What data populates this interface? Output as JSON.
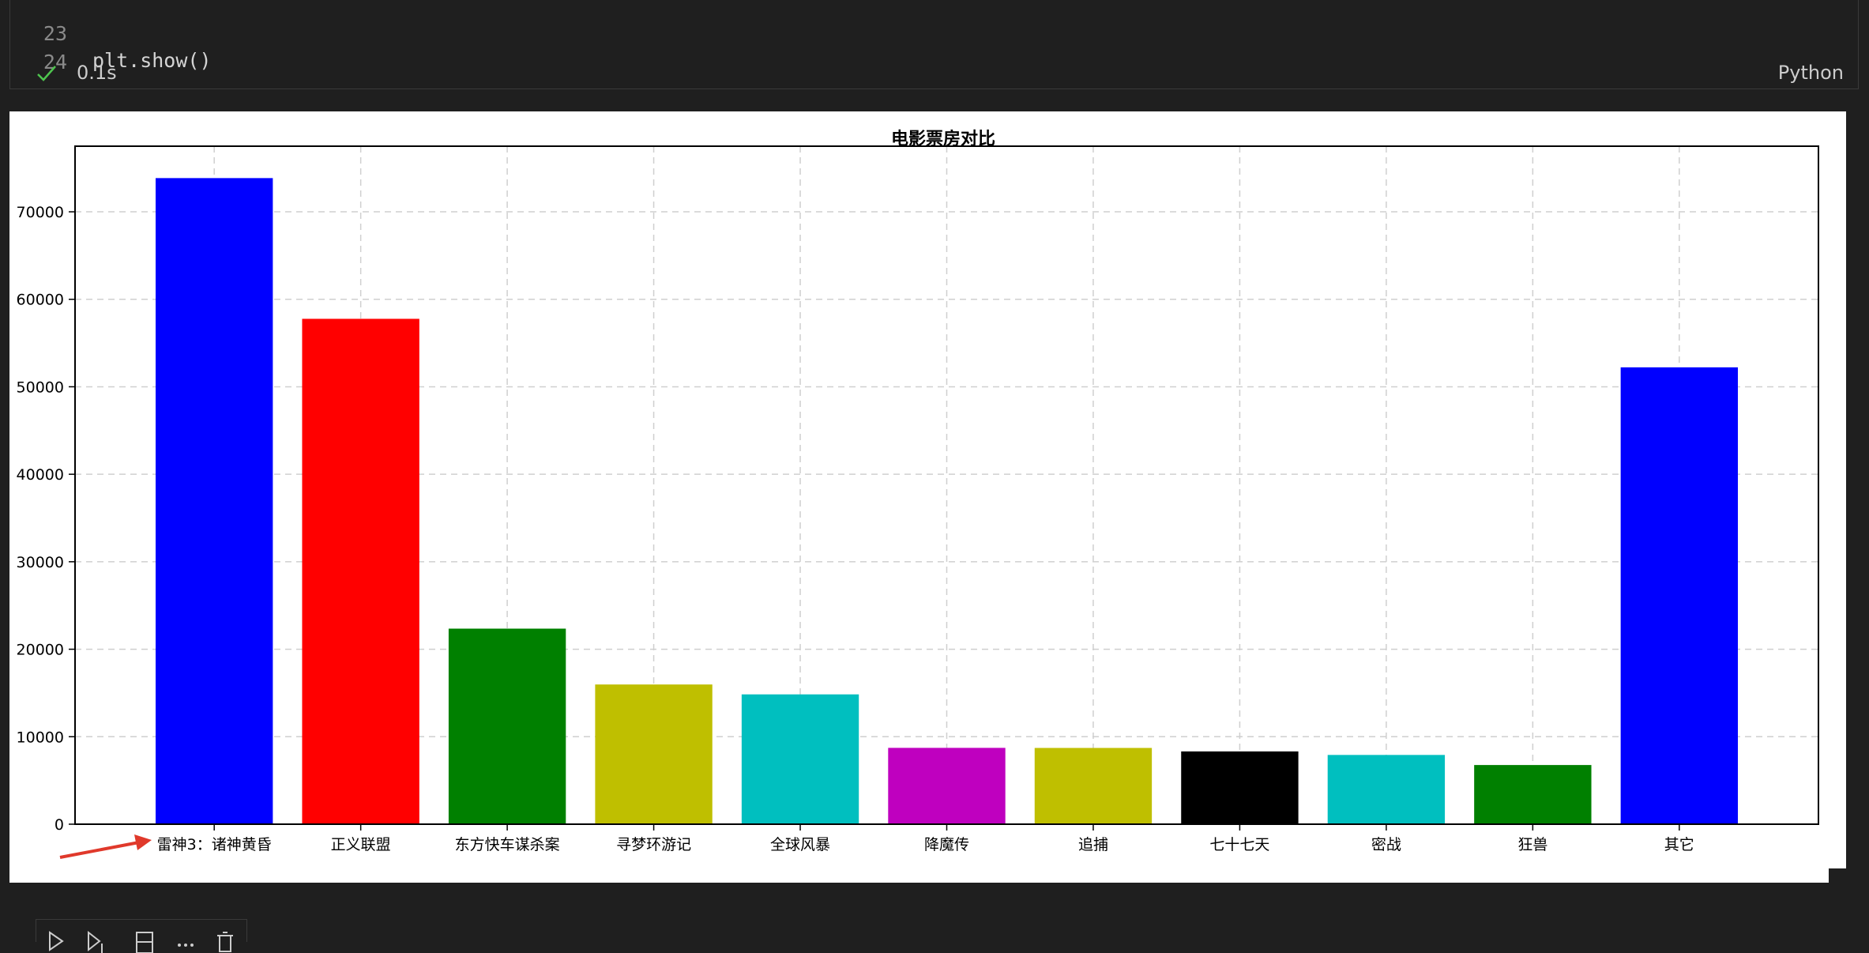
{
  "code_cell": {
    "lines": [
      {
        "number": "23",
        "code": "plt.show()"
      },
      {
        "number": "24",
        "code": ""
      }
    ],
    "status": {
      "timing": "0.1s",
      "language": "Python",
      "icon": "check-icon"
    }
  },
  "toolbar": {
    "icons": [
      "run-icon",
      "run-below-icon",
      "split-cell-icon",
      "more-icon",
      "delete-icon"
    ]
  },
  "chart_data": {
    "type": "bar",
    "title": "电影票房对比",
    "xlabel": "",
    "ylabel": "",
    "categories": [
      "雷神3：诸神黄昏",
      "正义联盟",
      "东方快车谋杀案",
      "寻梦环游记",
      "全球风暴",
      "降魔传",
      "追捕",
      "七十七天",
      "密战",
      "狂兽",
      "其它"
    ],
    "values": [
      73853,
      57767,
      22354,
      15969,
      14839,
      8725,
      8716,
      8318,
      7916,
      6764,
      52222
    ],
    "colors": [
      "#0000ff",
      "#ff0000",
      "#008000",
      "#bfbf00",
      "#00bfbf",
      "#bf00bf",
      "#bfbf00",
      "#000000",
      "#00bfbf",
      "#008000",
      "#0000ff"
    ],
    "yticks": [
      "0",
      "10000",
      "20000",
      "30000",
      "40000",
      "50000",
      "60000",
      "70000"
    ],
    "ylim": [
      0,
      77500
    ],
    "grid": true,
    "annotation": "red arrow pointing to first category label"
  }
}
